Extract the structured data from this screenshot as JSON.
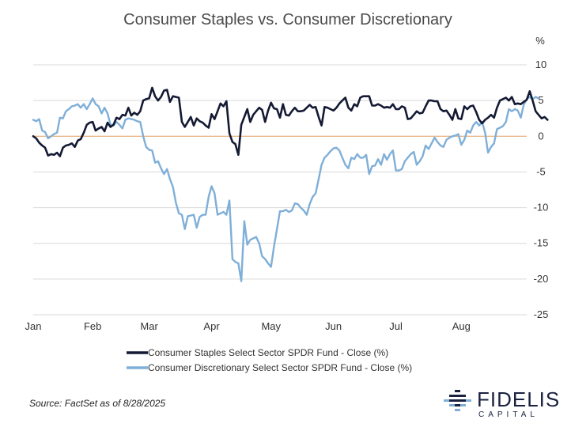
{
  "chart_data": {
    "type": "line",
    "title": "Consumer Staples vs. Consumer Discretionary",
    "ylabel": "%",
    "ylim": [
      -25,
      10
    ],
    "yticks": [
      10,
      5,
      0,
      -5,
      -10,
      -15,
      -20,
      -25
    ],
    "x_month_labels": [
      "Jan",
      "Feb",
      "Mar",
      "Apr",
      "May",
      "Jun",
      "Jul",
      "Aug"
    ],
    "x_unit": "trading day index (0 = Jan 2, 2025; 165 = Aug 28, 2025)",
    "x_range": [
      0,
      166
    ],
    "month_tick_index": [
      0,
      20,
      39,
      60,
      80,
      101,
      122,
      144
    ],
    "zero_line": true,
    "series": [
      {
        "name": "Consumer Staples Select Sector SPDR Fund - Close (%)",
        "color": "#141a33",
        "values": [
          0,
          -0.3,
          -0.9,
          -1.3,
          -1.6,
          -2.7,
          -2.5,
          -2.6,
          -2.3,
          -2.8,
          -1.6,
          -1.3,
          -1.2,
          -1.0,
          -1.5,
          -0.6,
          -0.4,
          0.5,
          1.6,
          1.9,
          2.0,
          0.8,
          1.1,
          1.3,
          0.7,
          1.9,
          1.3,
          1.6,
          2.6,
          2.4,
          3.0,
          2.9,
          4.0,
          2.9,
          3.3,
          3.0,
          3.5,
          5.0,
          5.2,
          5.3,
          6.8,
          5.6,
          5.0,
          5.5,
          6.4,
          6.5,
          4.8,
          5.6,
          5.5,
          5.4,
          2.0,
          1.3,
          2.0,
          2.7,
          1.5,
          2.5,
          2.1,
          1.9,
          1.5,
          1.2,
          3.1,
          2.4,
          3.5,
          4.6,
          4.2,
          4.9,
          0.4,
          -0.8,
          -1.1,
          -2.6,
          1.6,
          2.7,
          3.8,
          2.0,
          3.0,
          3.5,
          4.0,
          3.7,
          2.0,
          3.6,
          4.7,
          3.9,
          3.8,
          2.6,
          4.5,
          3.0,
          2.9,
          3.5,
          4.0,
          3.5,
          3.5,
          3.6,
          4.0,
          4.4,
          4.0,
          4.1,
          2.7,
          1.5,
          4.1,
          4.0,
          3.8,
          3.6,
          4.0,
          4.6,
          5.0,
          5.4,
          4.0,
          3.6,
          4.5,
          4.2,
          5.4,
          5.6,
          5.6,
          5.6,
          4.3,
          4.3,
          4.5,
          4.3,
          4.0,
          4.1,
          4.0,
          4.5,
          3.8,
          3.8,
          4.2,
          4.0,
          2.4,
          2.5,
          3.0,
          3.5,
          3.2,
          3.3,
          4.2,
          5.0,
          5.0,
          4.9,
          4.9,
          3.8,
          3.5,
          3.6,
          3.0,
          2.3,
          3.8,
          2.5,
          2.4,
          4.2,
          3.8,
          4.2,
          4.3,
          3.4,
          2.3,
          1.8,
          2.3,
          2.6,
          3.0,
          2.6,
          4.0,
          5.0,
          5.2,
          5.4,
          5.0,
          5.5,
          4.5,
          4.6,
          4.5,
          4.8,
          5.1,
          6.3,
          5.0,
          3.5,
          3.0,
          2.5,
          2.7,
          2.3
        ]
      },
      {
        "name": "Consumer Discretionary Select Sector SPDR Fund - Close (%)",
        "color": "#7fafd8",
        "values": [
          2.3,
          2.1,
          2.4,
          0.8,
          0.6,
          -0.3,
          0.0,
          0.3,
          0.5,
          2.6,
          2.5,
          3.5,
          3.8,
          4.2,
          4.3,
          4.5,
          4.0,
          4.5,
          3.8,
          4.5,
          5.3,
          4.5,
          4.2,
          3.2,
          4.0,
          3.2,
          1.6,
          1.5,
          2.0,
          1.6,
          1.1,
          2.3,
          2.5,
          2.4,
          2.3,
          2.1,
          2.0,
          0.0,
          -1.5,
          -1.9,
          -2.0,
          -3.7,
          -3.5,
          -4.5,
          -5.3,
          -4.6,
          -6.0,
          -7.1,
          -9.3,
          -10.8,
          -11.0,
          -13.0,
          -11.2,
          -11.1,
          -11.0,
          -12.8,
          -11.3,
          -11.0,
          -11.0,
          -8.5,
          -7.0,
          -8.0,
          -11.0,
          -10.8,
          -10.6,
          -11.0,
          -9.0,
          -17.2,
          -17.6,
          -17.8,
          -20.3,
          -11.9,
          -15.2,
          -14.5,
          -14.3,
          -14.1,
          -15.0,
          -16.8,
          -17.2,
          -17.8,
          -18.3,
          -15.4,
          -13.0,
          -10.5,
          -10.5,
          -10.3,
          -10.6,
          -10.4,
          -9.4,
          -9.5,
          -10.0,
          -10.4,
          -11.0,
          -9.5,
          -8.5,
          -8.0,
          -6.0,
          -4.0,
          -3.0,
          -2.6,
          -2.1,
          -1.7,
          -1.6,
          -2.0,
          -3.0,
          -4.0,
          -4.5,
          -3.0,
          -3.2,
          -2.5,
          -3.0,
          -3.0,
          -2.6,
          -5.3,
          -4.2,
          -4.1,
          -3.2,
          -4.0,
          -2.5,
          -3.3,
          -2.5,
          -2.0,
          -4.8,
          -4.8,
          -4.6,
          -3.5,
          -3.0,
          -2.5,
          -2.2,
          -4.0,
          -3.5,
          -2.8,
          -1.3,
          -1.8,
          -1.0,
          -0.2,
          -0.8,
          -1.3,
          -1.5,
          -0.5,
          -0.2,
          0.0,
          0.1,
          0.3,
          -1.2,
          -0.5,
          0.8,
          0.5,
          1.5,
          2.0,
          1.5,
          2.0,
          0.5,
          -2.3,
          -1.5,
          -1.0,
          1.0,
          1.2,
          1.4,
          2.0,
          3.8,
          3.5,
          3.8,
          3.6,
          2.6,
          4.4,
          5.2,
          5.5,
          5.2,
          5.5,
          5.3
        ]
      }
    ]
  },
  "source_note": "Source: FactSet as of 8/28/2025",
  "logo": {
    "word": "FIDELIS",
    "sub": "CAPITAL"
  }
}
